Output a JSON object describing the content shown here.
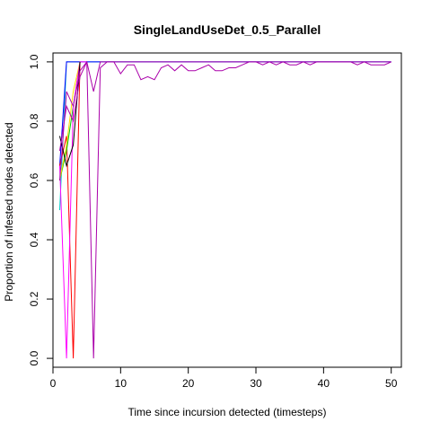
{
  "chart_data": {
    "type": "line",
    "title": "SingleLandUseDet_0.5_Parallel",
    "xlabel": "Time since incursion detected (timesteps)",
    "ylabel": "Proportion of infested nodes detected",
    "xlim": [
      0,
      51.5
    ],
    "ylim": [
      -0.03,
      1.03
    ],
    "xticks": [
      0,
      10,
      20,
      30,
      40,
      50
    ],
    "yticks": [
      0.0,
      0.2,
      0.4,
      0.6,
      0.8,
      1.0
    ],
    "xtick_labels": [
      "0",
      "10",
      "20",
      "30",
      "40",
      "50"
    ],
    "ytick_labels": [
      "0.0",
      "0.2",
      "0.4",
      "0.6",
      "0.8",
      "1.0"
    ],
    "grid": false,
    "legend": "none",
    "series": [
      {
        "color": "#00CCCC",
        "x": [
          1,
          2,
          3,
          4,
          5,
          10,
          20,
          30,
          40,
          50
        ],
        "y": [
          0.5,
          1,
          1,
          1,
          1,
          1,
          1,
          1,
          1,
          1
        ]
      },
      {
        "color": "#0000FF",
        "x": [
          1,
          2,
          3,
          4,
          5,
          10,
          20,
          30,
          40,
          50
        ],
        "y": [
          0.65,
          1,
          1,
          1,
          1,
          1,
          1,
          1,
          1,
          1
        ]
      },
      {
        "color": "#FF0000",
        "x": [
          1,
          2,
          3,
          4
        ],
        "y": [
          0.65,
          0.75,
          0,
          1
        ]
      },
      {
        "color": "#00CD00",
        "x": [
          1,
          2,
          3,
          4
        ],
        "y": [
          0.6,
          0.7,
          0.85,
          1
        ]
      },
      {
        "color": "#FFD700",
        "x": [
          1,
          2,
          3,
          4
        ],
        "y": [
          0.6,
          0.72,
          0.9,
          1
        ]
      },
      {
        "color": "#FF00FF",
        "x": [
          1,
          2,
          3,
          4,
          5
        ],
        "y": [
          0.65,
          0,
          0.85,
          1,
          1
        ]
      },
      {
        "color": "#000000",
        "x": [
          1,
          2,
          3,
          4
        ],
        "y": [
          0.75,
          0.65,
          0.72,
          1
        ]
      },
      {
        "color": "#AA00AA",
        "x": [
          1,
          2,
          3,
          4,
          5,
          6,
          7,
          8,
          9,
          10,
          11,
          12,
          13,
          14,
          15,
          16,
          17,
          18,
          19,
          20,
          21,
          22,
          23,
          24,
          25,
          26,
          27,
          28,
          29,
          30,
          31,
          32,
          33,
          34,
          35,
          36,
          37,
          38,
          39,
          40,
          41,
          42,
          43,
          44,
          45,
          46,
          47,
          48,
          49,
          50
        ],
        "y": [
          0.7,
          0.85,
          0.8,
          0.95,
          1,
          0,
          0.98,
          1,
          1,
          0.96,
          0.99,
          0.99,
          0.94,
          0.95,
          0.94,
          0.98,
          0.99,
          0.97,
          0.99,
          0.97,
          0.97,
          0.98,
          0.99,
          0.97,
          0.97,
          0.98,
          0.98,
          0.99,
          1,
          1,
          0.99,
          1,
          0.99,
          1,
          0.99,
          0.99,
          1,
          0.99,
          1,
          1,
          1,
          1,
          1,
          1,
          0.99,
          1,
          0.99,
          0.99,
          0.99,
          1
        ]
      },
      {
        "color": "#AA00AA",
        "x": [
          1,
          2,
          3,
          4,
          5,
          6,
          7,
          10,
          20,
          30,
          40,
          50
        ],
        "y": [
          0.6,
          0.9,
          0.85,
          0.97,
          1,
          0.9,
          1,
          1,
          1,
          1,
          1,
          1
        ]
      }
    ]
  }
}
